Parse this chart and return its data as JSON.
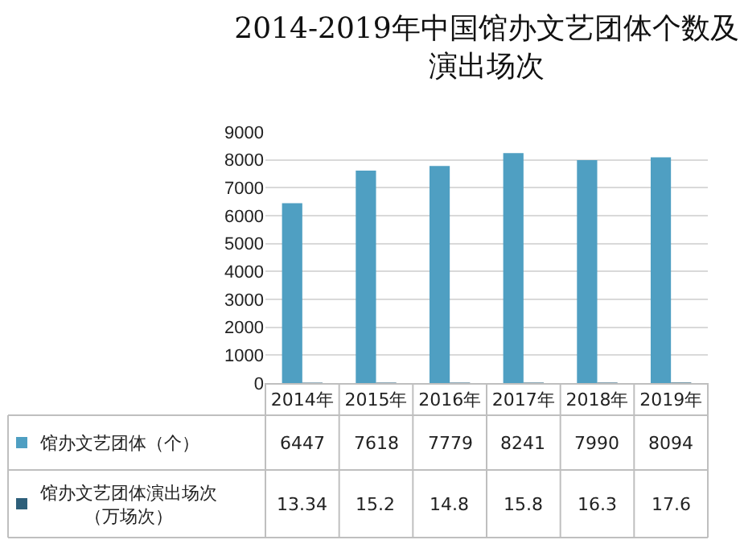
{
  "chart_data": {
    "type": "bar",
    "title": "2014-2019年中国馆办文艺团体个数及演出场次",
    "categories": [
      "2014年",
      "2015年",
      "2016年",
      "2017年",
      "2018年",
      "2019年"
    ],
    "series": [
      {
        "name": "馆办文艺团体（个）",
        "color": "#4f9fc2",
        "values": [
          6447,
          7618,
          7779,
          8241,
          7990,
          8094
        ]
      },
      {
        "name": "馆办文艺团体演出场次（万场次）",
        "color": "#2d5f7a",
        "values": [
          13.34,
          15.2,
          14.8,
          15.8,
          16.3,
          17.6
        ]
      }
    ],
    "ylim": [
      0,
      9000
    ],
    "yticks": [
      0,
      1000,
      2000,
      3000,
      4000,
      5000,
      6000,
      7000,
      8000,
      9000
    ],
    "grid": "y",
    "legend": "bottom",
    "data_labels": true
  }
}
